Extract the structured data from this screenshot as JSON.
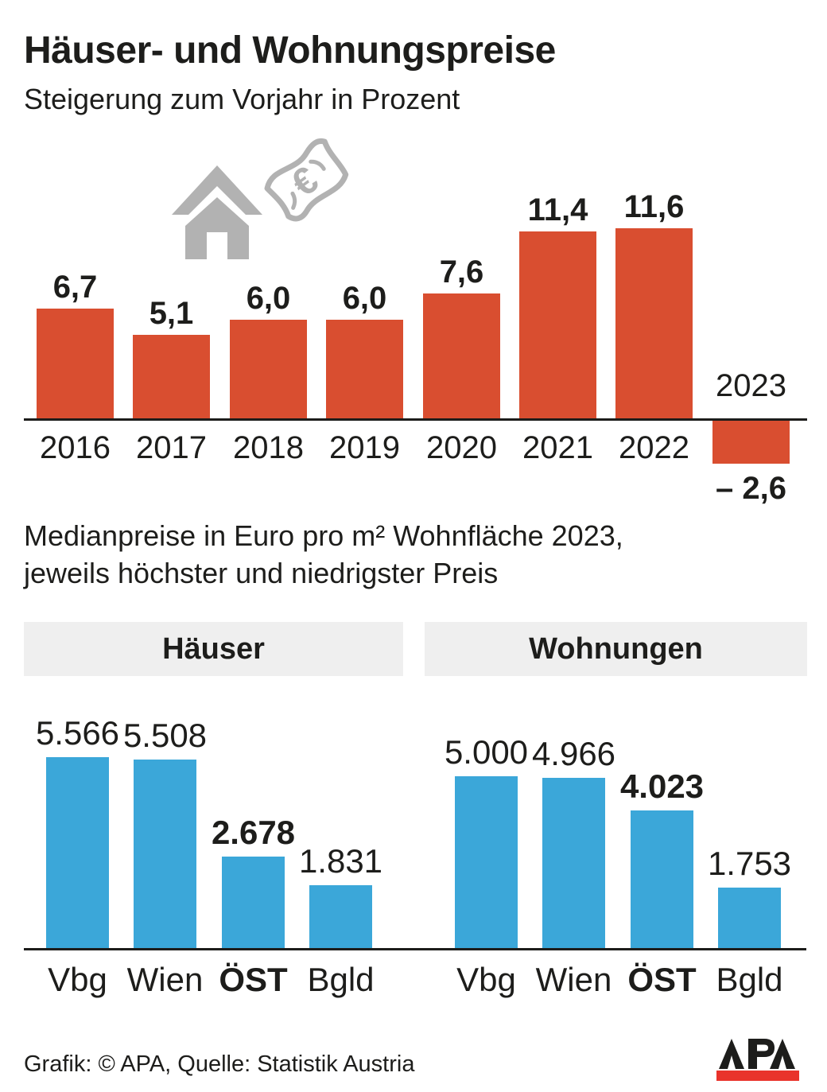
{
  "title": "Häuser- und Wohnungspreise",
  "subtitle": "Steigerung zum Vorjahr in Prozent",
  "mid_text": {
    "line1": "Medianpreise in Euro pro m² Wohnfläche 2023,",
    "line2": "jeweils höchster und niedrigster Preis"
  },
  "sections": {
    "left_header": "Häuser",
    "right_header": "Wohnungen"
  },
  "icons": {
    "house": "house-icon",
    "banknote": "euro-banknote-icon"
  },
  "colors": {
    "text": "#1d1d1b",
    "bar_red": "#d94e30",
    "bar_blue": "#3ba7d9",
    "icon_gray": "#b2b2b2",
    "band_bg": "#efefef",
    "logo_red": "#e9332b"
  },
  "footer": {
    "credit": "Grafik: © APA, Quelle: Statistik Austria",
    "logo_text": "APA"
  },
  "chart_data": [
    {
      "id": "yearly_change",
      "type": "bar",
      "title": "Steigerung zum Vorjahr in Prozent",
      "categories": [
        "2016",
        "2017",
        "2018",
        "2019",
        "2020",
        "2021",
        "2022",
        "2023"
      ],
      "values": [
        6.7,
        5.1,
        6.0,
        6.0,
        7.6,
        11.4,
        11.6,
        -2.6
      ],
      "labels": [
        "6,7",
        "5,1",
        "6,0",
        "6,0",
        "7,6",
        "11,4",
        "11,6",
        "– 2,6"
      ],
      "bar_color": "#d94e30",
      "ylim": [
        -3,
        12
      ],
      "grid": false,
      "legend": false,
      "note": "2023 bar is negative and drawn below the baseline"
    },
    {
      "id": "haeuser_median",
      "type": "bar",
      "title": "Häuser",
      "categories": [
        "Vbg",
        "Wien",
        "ÖST",
        "Bgld"
      ],
      "values": [
        5566,
        5508,
        2678,
        1831
      ],
      "labels": [
        "5.566",
        "5.508",
        "2.678",
        "1.831"
      ],
      "emphasis": [
        false,
        false,
        true,
        false
      ],
      "bar_color": "#3ba7d9",
      "ylim": [
        0,
        6000
      ],
      "grid": false,
      "legend": false
    },
    {
      "id": "wohnungen_median",
      "type": "bar",
      "title": "Wohnungen",
      "categories": [
        "Vbg",
        "Wien",
        "ÖST",
        "Bgld"
      ],
      "values": [
        5000,
        4966,
        4023,
        1753
      ],
      "labels": [
        "5.000",
        "4.966",
        "4.023",
        "1.753"
      ],
      "emphasis": [
        false,
        false,
        true,
        false
      ],
      "bar_color": "#3ba7d9",
      "ylim": [
        0,
        6000
      ],
      "grid": false,
      "legend": false
    }
  ]
}
